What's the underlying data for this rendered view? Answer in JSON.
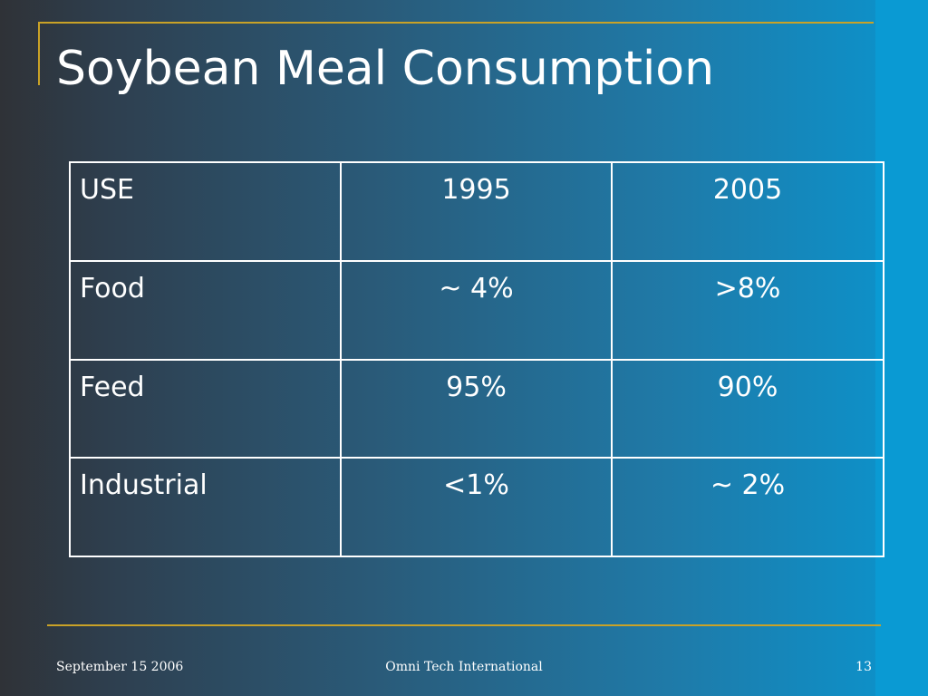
{
  "slide": {
    "title": "Soybean Meal Consumption"
  },
  "table": {
    "headers": [
      "USE",
      "1995",
      "2005"
    ],
    "rows": [
      [
        "Food",
        "~ 4%",
        ">8%"
      ],
      [
        "Feed",
        "95%",
        "90%"
      ],
      [
        "Industrial",
        "<1%",
        "~ 2%"
      ]
    ]
  },
  "footer": {
    "date": "September 15 2006",
    "company": "Omni Tech International",
    "page_number": "13"
  },
  "colors": {
    "accent_rule": "#c9a227",
    "text": "#ffffff",
    "background_left": "#2f3237",
    "background_right": "#0a95cf"
  }
}
